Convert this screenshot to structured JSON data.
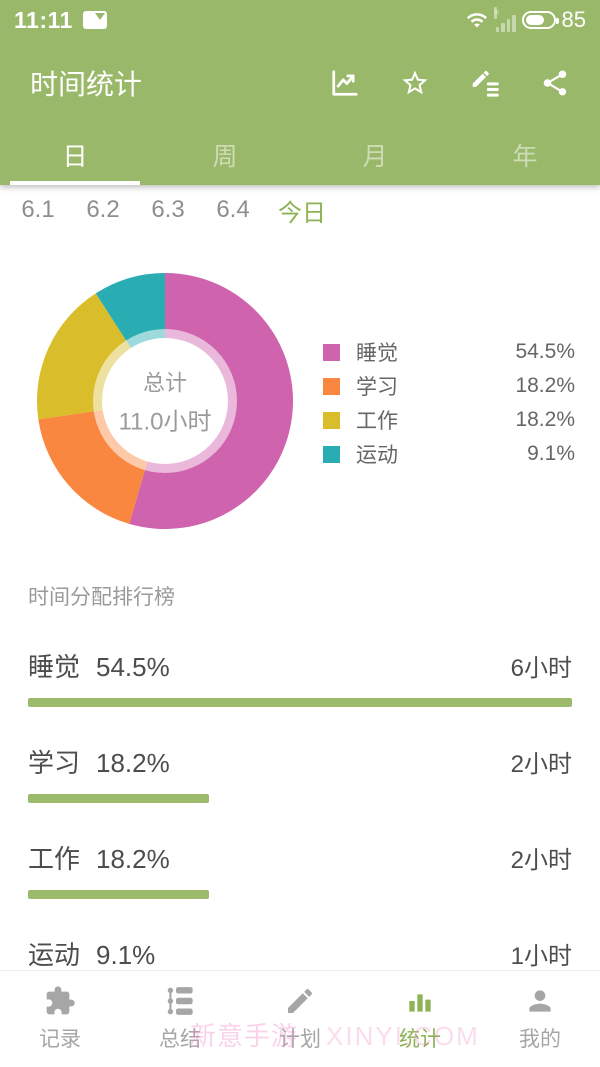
{
  "status_bar": {
    "time": "11:11",
    "battery_level": "85"
  },
  "app_bar": {
    "title": "时间统计"
  },
  "tabs": [
    {
      "label": "日",
      "active": true
    },
    {
      "label": "周",
      "active": false
    },
    {
      "label": "月",
      "active": false
    },
    {
      "label": "年",
      "active": false
    }
  ],
  "date_selector": {
    "dates": [
      "6.1",
      "6.2",
      "6.3",
      "6.4"
    ],
    "today_label": "今日"
  },
  "chart_data": {
    "type": "pie",
    "donut": true,
    "center_label": "总计",
    "center_value": "11.0小时",
    "total_hours": 11.0,
    "unit": "小时",
    "legend_position": "right",
    "series": [
      {
        "name": "睡觉",
        "percent": 54.5,
        "percent_label": "54.5%",
        "hours": 6,
        "hours_label": "6小时",
        "color": "#cf63ae"
      },
      {
        "name": "学习",
        "percent": 18.2,
        "percent_label": "18.2%",
        "hours": 2,
        "hours_label": "2小时",
        "color": "#fa8740"
      },
      {
        "name": "工作",
        "percent": 18.2,
        "percent_label": "18.2%",
        "hours": 2,
        "hours_label": "2小时",
        "color": "#d9bd2b"
      },
      {
        "name": "运动",
        "percent": 9.1,
        "percent_label": "9.1%",
        "hours": 1,
        "hours_label": "1小时",
        "color": "#29acb2"
      }
    ]
  },
  "ranking": {
    "title": "时间分配排行榜"
  },
  "bottom_nav": {
    "items": [
      {
        "label": "记录",
        "icon": "puzzle-icon",
        "active": false
      },
      {
        "label": "总结",
        "icon": "timeline-icon",
        "active": false
      },
      {
        "label": "计划",
        "icon": "pencil-icon",
        "active": false
      },
      {
        "label": "统计",
        "icon": "bar-chart-icon",
        "active": true
      },
      {
        "label": "我的",
        "icon": "person-icon",
        "active": false
      }
    ]
  },
  "watermark": {
    "text_cn": "新意手游",
    "text_en": "XINYI.COM"
  },
  "colors": {
    "header_green": "#9ab869",
    "accent_green": "#8cb355",
    "bar_green": "#9cba6c",
    "sleep_pink": "#cf63ae",
    "study_orange": "#fa8740",
    "work_yellow": "#d9bd2b",
    "sport_teal": "#29acb2"
  }
}
